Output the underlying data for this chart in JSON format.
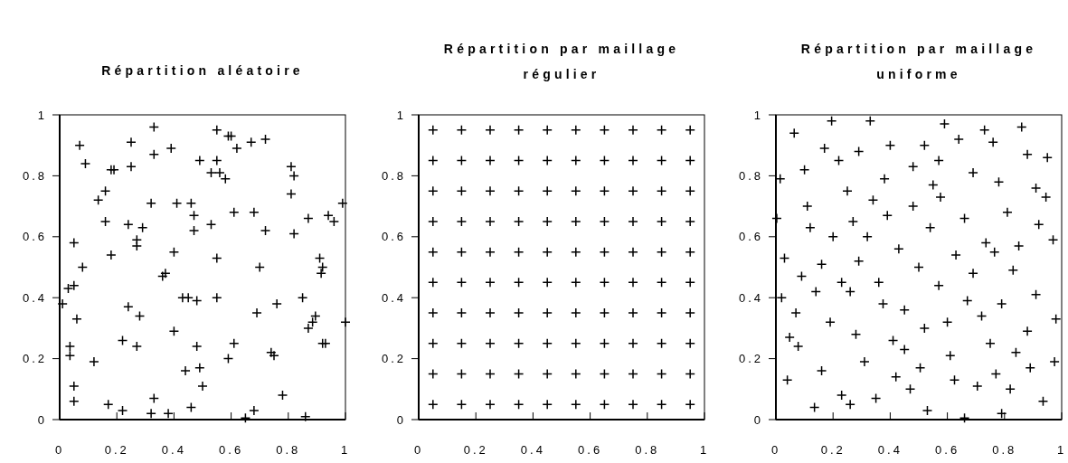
{
  "chart_data": [
    {
      "type": "scatter",
      "title": "Répartition aléatoire",
      "xlim": [
        0,
        1
      ],
      "ylim": [
        0,
        1
      ],
      "xticks": [
        0,
        0.2,
        0.4,
        0.6,
        0.8,
        1
      ],
      "yticks": [
        0,
        0.2,
        0.4,
        0.6,
        0.8,
        1
      ],
      "marker": "cross",
      "grid": false,
      "color": "#000000",
      "x": [
        0.33,
        0.07,
        0.25,
        0.09,
        0.18,
        0.19,
        0.25,
        0.33,
        0.39,
        0.55,
        0.59,
        0.6,
        0.62,
        0.67,
        0.72,
        0.49,
        0.55,
        0.53,
        0.56,
        0.58,
        0.81,
        0.82,
        0.81,
        0.99,
        0.135,
        0.16,
        0.32,
        0.41,
        0.46,
        0.47,
        0.61,
        0.68,
        0.87,
        0.94,
        0.96,
        0.16,
        0.24,
        0.29,
        0.47,
        0.53,
        0.72,
        0.82,
        0.05,
        0.27,
        0.27,
        0.18,
        0.4,
        0.55,
        0.7,
        0.91,
        0.92,
        0.915,
        0.08,
        0.37,
        0.36,
        0.05,
        0.03,
        0.01,
        0.06,
        0.036,
        0.036,
        0.05,
        0.05,
        0.12,
        0.17,
        0.22,
        0.24,
        0.22,
        0.28,
        0.27,
        0.32,
        0.33,
        0.38,
        0.4,
        0.43,
        0.45,
        0.48,
        0.55,
        0.48,
        0.44,
        0.49,
        0.5,
        0.46,
        0.61,
        0.59,
        0.65,
        0.68,
        0.69,
        0.76,
        0.74,
        0.75,
        0.78,
        0.86,
        0.85,
        0.87,
        0.885,
        0.895,
        0.92,
        0.93,
        1
      ],
      "values": [
        0.96,
        0.9,
        0.91,
        0.84,
        0.82,
        0.82,
        0.83,
        0.87,
        0.89,
        0.95,
        0.93,
        0.93,
        0.89,
        0.91,
        0.92,
        0.85,
        0.85,
        0.81,
        0.81,
        0.79,
        0.83,
        0.8,
        0.74,
        0.71,
        0.72,
        0.75,
        0.71,
        0.71,
        0.71,
        0.67,
        0.68,
        0.68,
        0.66,
        0.67,
        0.65,
        0.65,
        0.64,
        0.63,
        0.62,
        0.64,
        0.62,
        0.61,
        0.58,
        0.59,
        0.57,
        0.54,
        0.55,
        0.53,
        0.5,
        0.53,
        0.5,
        0.48,
        0.5,
        0.48,
        0.47,
        0.44,
        0.43,
        0.38,
        0.33,
        0.24,
        0.21,
        0.11,
        0.06,
        0.19,
        0.05,
        0.03,
        0.37,
        0.26,
        0.34,
        0.24,
        0.02,
        0.07,
        0.02,
        0.29,
        0.4,
        0.4,
        0.39,
        0.4,
        0.24,
        0.16,
        0.17,
        0.11,
        0.04,
        0.25,
        0.2,
        0.005,
        0.03,
        0.35,
        0.38,
        0.22,
        0.21,
        0.08,
        0.01,
        0.4,
        0.3,
        0.32,
        0.34,
        0.25,
        0.25,
        0.32
      ]
    },
    {
      "type": "scatter",
      "title": "Répartition par maillage régulier",
      "xlim": [
        0,
        1
      ],
      "ylim": [
        0,
        1
      ],
      "xticks": [
        0,
        0.2,
        0.4,
        0.6,
        0.8,
        1
      ],
      "yticks": [
        0,
        0.2,
        0.4,
        0.6,
        0.8,
        1
      ],
      "marker": "cross",
      "grid": false,
      "color": "#000000",
      "x": [
        0.05,
        0.15,
        0.25,
        0.35,
        0.45,
        0.55,
        0.65,
        0.75,
        0.85,
        0.95,
        0.05,
        0.15,
        0.25,
        0.35,
        0.45,
        0.55,
        0.65,
        0.75,
        0.85,
        0.95,
        0.05,
        0.15,
        0.25,
        0.35,
        0.45,
        0.55,
        0.65,
        0.75,
        0.85,
        0.95,
        0.05,
        0.15,
        0.25,
        0.35,
        0.45,
        0.55,
        0.65,
        0.75,
        0.85,
        0.95,
        0.05,
        0.15,
        0.25,
        0.35,
        0.45,
        0.55,
        0.65,
        0.75,
        0.85,
        0.95,
        0.05,
        0.15,
        0.25,
        0.35,
        0.45,
        0.55,
        0.65,
        0.75,
        0.85,
        0.95,
        0.05,
        0.15,
        0.25,
        0.35,
        0.45,
        0.55,
        0.65,
        0.75,
        0.85,
        0.95,
        0.05,
        0.15,
        0.25,
        0.35,
        0.45,
        0.55,
        0.65,
        0.75,
        0.85,
        0.95,
        0.05,
        0.15,
        0.25,
        0.35,
        0.45,
        0.55,
        0.65,
        0.75,
        0.85,
        0.95,
        0.05,
        0.15,
        0.25,
        0.35,
        0.45,
        0.55,
        0.65,
        0.75,
        0.85,
        0.95
      ],
      "values": [
        0.95,
        0.95,
        0.95,
        0.95,
        0.95,
        0.95,
        0.95,
        0.95,
        0.95,
        0.95,
        0.85,
        0.85,
        0.85,
        0.85,
        0.85,
        0.85,
        0.85,
        0.85,
        0.85,
        0.85,
        0.75,
        0.75,
        0.75,
        0.75,
        0.75,
        0.75,
        0.75,
        0.75,
        0.75,
        0.75,
        0.65,
        0.65,
        0.65,
        0.65,
        0.65,
        0.65,
        0.65,
        0.65,
        0.65,
        0.65,
        0.55,
        0.55,
        0.55,
        0.55,
        0.55,
        0.55,
        0.55,
        0.55,
        0.55,
        0.55,
        0.45,
        0.45,
        0.45,
        0.45,
        0.45,
        0.45,
        0.45,
        0.45,
        0.45,
        0.45,
        0.35,
        0.35,
        0.35,
        0.35,
        0.35,
        0.35,
        0.35,
        0.35,
        0.35,
        0.35,
        0.25,
        0.25,
        0.25,
        0.25,
        0.25,
        0.25,
        0.25,
        0.25,
        0.25,
        0.25,
        0.15,
        0.15,
        0.15,
        0.15,
        0.15,
        0.15,
        0.15,
        0.15,
        0.15,
        0.15,
        0.05,
        0.05,
        0.05,
        0.05,
        0.05,
        0.05,
        0.05,
        0.05,
        0.05,
        0.05
      ]
    },
    {
      "type": "scatter",
      "title": "Répartition par maillage uniforme",
      "xlim": [
        0,
        1
      ],
      "ylim": [
        0,
        1
      ],
      "xticks": [
        0,
        0.2,
        0.4,
        0.6,
        0.8,
        1
      ],
      "yticks": [
        0,
        0.2,
        0.4,
        0.6,
        0.8,
        1
      ],
      "marker": "cross",
      "grid": false,
      "color": "#000000",
      "x": [
        0.195,
        0.33,
        0.064,
        0.59,
        0.86,
        0.73,
        0.76,
        0.64,
        0.17,
        0.29,
        0.4,
        0.52,
        0.88,
        0.95,
        0.22,
        0.57,
        0.48,
        0.1,
        0.015,
        0.38,
        0.69,
        0.78,
        0.55,
        0.576,
        0.91,
        0.945,
        0.25,
        0.34,
        0.11,
        0.48,
        0.39,
        0.81,
        0.003,
        0.66,
        0.27,
        0.92,
        0.12,
        0.54,
        0.2,
        0.32,
        0.97,
        0.43,
        0.735,
        0.765,
        0.85,
        0.63,
        0.03,
        0.16,
        0.29,
        0.5,
        0.69,
        0.83,
        0.09,
        0.23,
        0.26,
        0.14,
        0.36,
        0.57,
        0.02,
        0.07,
        0.375,
        0.45,
        0.67,
        0.79,
        0.91,
        0.72,
        0.19,
        0.6,
        0.52,
        0.98,
        0.28,
        0.88,
        0.048,
        0.078,
        0.41,
        0.45,
        0.75,
        0.84,
        0.61,
        0.31,
        0.975,
        0.505,
        0.89,
        0.04,
        0.16,
        0.42,
        0.625,
        0.77,
        0.705,
        0.47,
        0.82,
        0.23,
        0.26,
        0.135,
        0.35,
        0.935,
        0.53,
        0.66,
        0.79
      ],
      "values": [
        0.98,
        0.98,
        0.94,
        0.97,
        0.96,
        0.95,
        0.91,
        0.92,
        0.89,
        0.88,
        0.9,
        0.9,
        0.87,
        0.86,
        0.85,
        0.85,
        0.83,
        0.82,
        0.79,
        0.79,
        0.81,
        0.78,
        0.77,
        0.73,
        0.76,
        0.73,
        0.75,
        0.72,
        0.7,
        0.7,
        0.67,
        0.68,
        0.66,
        0.66,
        0.65,
        0.64,
        0.63,
        0.63,
        0.6,
        0.6,
        0.59,
        0.56,
        0.58,
        0.55,
        0.57,
        0.54,
        0.53,
        0.51,
        0.52,
        0.5,
        0.48,
        0.49,
        0.47,
        0.45,
        0.42,
        0.42,
        0.45,
        0.44,
        0.4,
        0.35,
        0.38,
        0.36,
        0.39,
        0.38,
        0.41,
        0.34,
        0.32,
        0.32,
        0.3,
        0.33,
        0.28,
        0.29,
        0.27,
        0.24,
        0.26,
        0.23,
        0.25,
        0.22,
        0.21,
        0.19,
        0.19,
        0.17,
        0.17,
        0.13,
        0.16,
        0.14,
        0.13,
        0.15,
        0.11,
        0.1,
        0.1,
        0.08,
        0.05,
        0.04,
        0.07,
        0.06,
        0.03,
        0.005,
        0.02
      ]
    }
  ]
}
